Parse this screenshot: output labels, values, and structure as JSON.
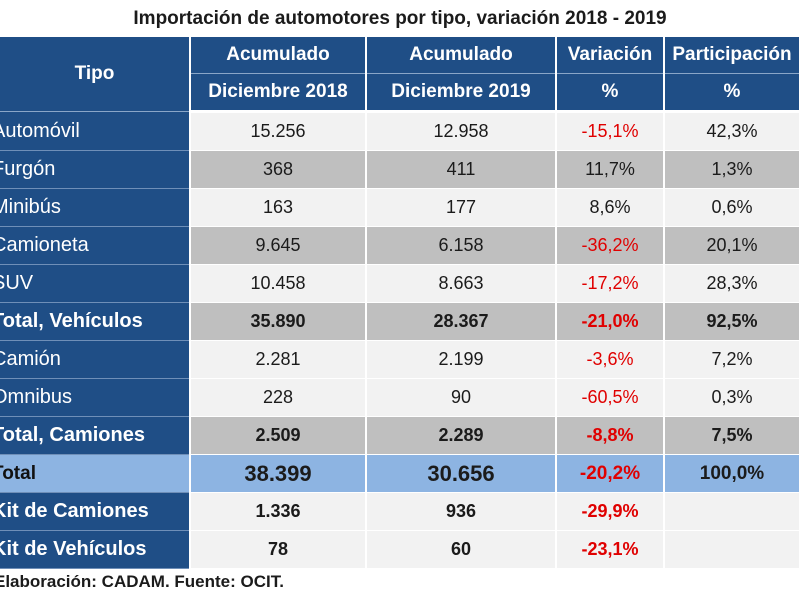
{
  "title": "Importación de automotores por tipo, variación 2018 - 2019",
  "header": {
    "tipo": "Tipo",
    "acum1_line1": "Acumulado",
    "acum1_line2": "Diciembre 2018",
    "acum2_line1": "Acumulado",
    "acum2_line2": "Diciembre 2019",
    "var_line1": "Variación",
    "var_line2": "%",
    "part_line1": "Participación",
    "part_line2": "%"
  },
  "rows": [
    {
      "tipo": "Automóvil",
      "d2018": "15.256",
      "d2019": "12.958",
      "var": "-15,1%",
      "part": "42,3%"
    },
    {
      "tipo": "Furgón",
      "d2018": "368",
      "d2019": "411",
      "var": "11,7%",
      "part": "1,3%"
    },
    {
      "tipo": "Minibús",
      "d2018": "163",
      "d2019": "177",
      "var": "8,6%",
      "part": "0,6%"
    },
    {
      "tipo": "Camioneta",
      "d2018": "9.645",
      "d2019": "6.158",
      "var": "-36,2%",
      "part": "20,1%"
    },
    {
      "tipo": "SUV",
      "d2018": "10.458",
      "d2019": "8.663",
      "var": "-17,2%",
      "part": "28,3%"
    },
    {
      "tipo": "Total, Vehículos",
      "d2018": "35.890",
      "d2019": "28.367",
      "var": "-21,0%",
      "part": "92,5%"
    },
    {
      "tipo": "Camión",
      "d2018": "2.281",
      "d2019": "2.199",
      "var": "-3,6%",
      "part": "7,2%"
    },
    {
      "tipo": "Omnibus",
      "d2018": "228",
      "d2019": "90",
      "var": "-60,5%",
      "part": "0,3%"
    },
    {
      "tipo": "Total, Camiones",
      "d2018": "2.509",
      "d2019": "2.289",
      "var": "-8,8%",
      "part": "7,5%"
    },
    {
      "tipo": "Total",
      "d2018": "38.399",
      "d2019": "30.656",
      "var": "-20,2%",
      "part": "100,0%"
    },
    {
      "tipo": "Kit de Camiones",
      "d2018": "1.336",
      "d2019": "936",
      "var": "-29,9%",
      "part": ""
    },
    {
      "tipo": "Kit de Vehículos",
      "d2018": "78",
      "d2019": "60",
      "var": "-23,1%",
      "part": ""
    }
  ],
  "footer": "Elaboración: CADAM. Fuente: OCIT.",
  "colors": {
    "header_bg": "#1f4e86",
    "total_bg": "#8db4e2",
    "row_light": "#f2f2f2",
    "row_gray": "#bfbfbf",
    "negative": "#e00000"
  }
}
